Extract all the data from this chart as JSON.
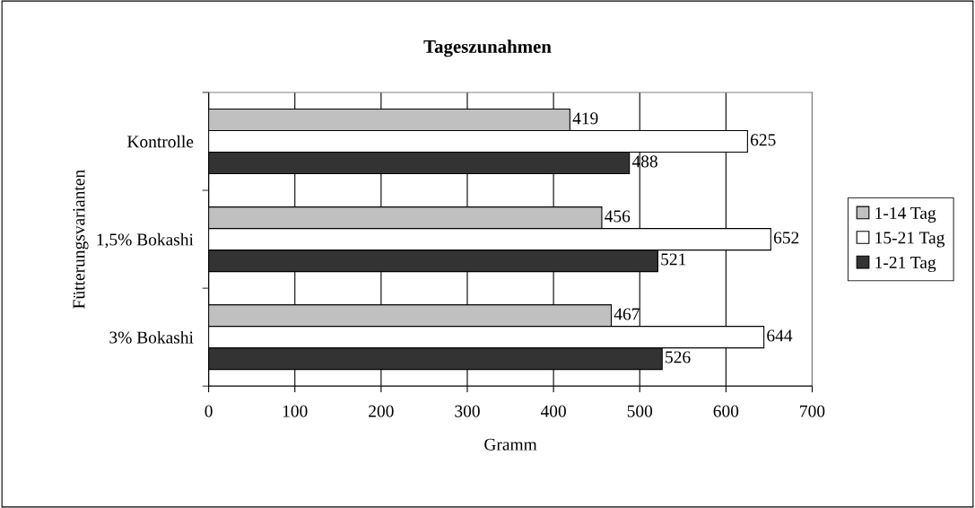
{
  "chart_data": {
    "type": "bar",
    "orientation": "horizontal",
    "title": "Tageszunahmen",
    "xlabel": "Gramm",
    "ylabel": "Fütterungsvarianten",
    "categories": [
      "Kontrolle",
      "1,5% Bokashi",
      "3% Bokashi"
    ],
    "series": [
      {
        "name": "1-14 Tag",
        "color": "#c0c0c0",
        "values": [
          419,
          456,
          467
        ]
      },
      {
        "name": "15-21 Tag",
        "color": "#ffffff",
        "values": [
          625,
          652,
          644
        ]
      },
      {
        "name": "1-21 Tag",
        "color": "#333333",
        "values": [
          488,
          521,
          526
        ]
      }
    ],
    "xlim": [
      0,
      700
    ],
    "xticks": [
      0,
      100,
      200,
      300,
      400,
      500,
      600,
      700
    ],
    "grid": "x",
    "legend": "right",
    "data_labels": true
  }
}
